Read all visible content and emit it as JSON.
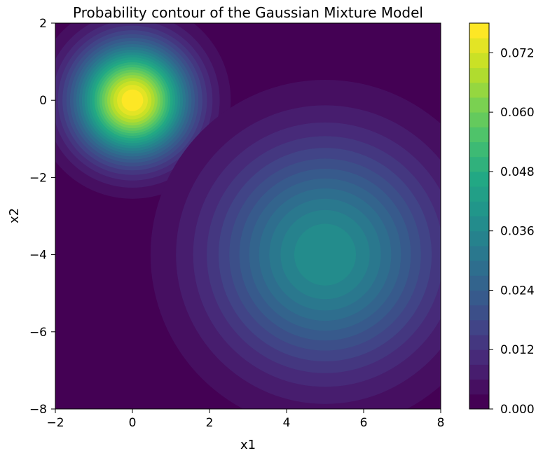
{
  "chart_data": {
    "type": "contourf",
    "title": "Probability contour of the Gaussian Mixture Model",
    "xlabel": "x1",
    "ylabel": "x2",
    "xlim": [
      -2,
      8
    ],
    "ylim": [
      -8,
      2
    ],
    "x_ticks": [
      -2,
      0,
      2,
      4,
      6,
      8
    ],
    "y_ticks": [
      -8,
      -6,
      -4,
      -2,
      0,
      2
    ],
    "x_tick_labels": [
      "−2",
      "0",
      "2",
      "4",
      "6",
      "8"
    ],
    "y_tick_labels": [
      "−8",
      "−6",
      "−4",
      "−2",
      "0",
      "2"
    ],
    "colormap": "viridis",
    "grid": false,
    "components": [
      {
        "mean": [
          0,
          0
        ],
        "std": 1.0,
        "peak_density": 0.078
      },
      {
        "mean": [
          5,
          -4
        ],
        "std": 2.0,
        "peak_density": 0.039
      }
    ],
    "colorbar": {
      "min": 0.0,
      "max": 0.078,
      "levels": 26,
      "ticks": [
        0.0,
        0.012,
        0.024,
        0.036,
        0.048,
        0.06,
        0.072
      ],
      "tick_labels": [
        "0.000",
        "0.012",
        "0.024",
        "0.036",
        "0.048",
        "0.060",
        "0.072"
      ],
      "position": "right"
    }
  }
}
